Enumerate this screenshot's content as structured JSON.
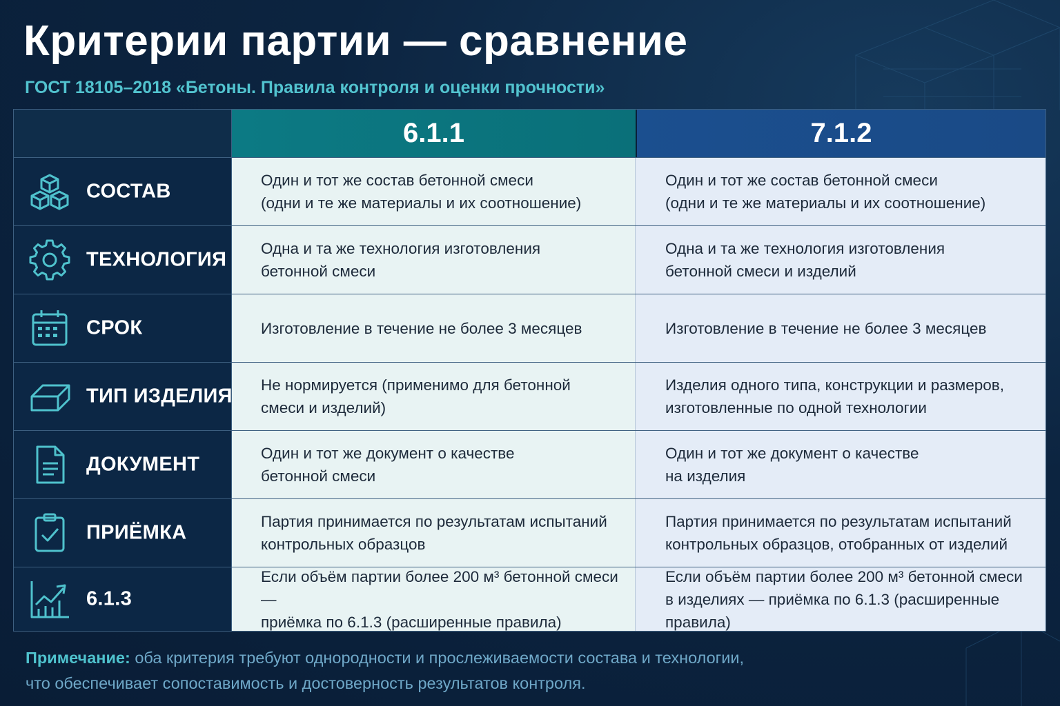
{
  "header": {
    "title": "Критерии партии — сравнение",
    "subtitle": "ГОСТ 18105–2018 «Бетоны. Правила контроля и оценки прочности»"
  },
  "table": {
    "columns": [
      "6.1.1",
      "7.1.2"
    ],
    "rows": [
      {
        "icon": "cubes-icon",
        "label": "СОСТАВ",
        "a": "Один и тот же состав бетонной смеси\n(одни и те же материалы и их соотношение)",
        "b": "Один и тот же состав бетонной смеси\n(одни и те же материалы и их соотношение)"
      },
      {
        "icon": "gear-icon",
        "label": "ТЕХНОЛОГИЯ",
        "a": "Одна и та же технология изготовления\nбетонной смеси",
        "b": "Одна и та же технология изготовления\nбетонной смеси и изделий"
      },
      {
        "icon": "calendar-icon",
        "label": "СРОК",
        "a": "Изготовление в течение не более 3 месяцев",
        "b": "Изготовление в течение не более 3 месяцев"
      },
      {
        "icon": "block-icon",
        "label": "ТИП ИЗДЕЛИЯ",
        "a": "Не нормируется (применимо для бетонной\nсмеси и изделий)",
        "b": "Изделия одного типа, конструкции и размеров,\nизготовленные по одной технологии"
      },
      {
        "icon": "document-icon",
        "label": "ДОКУМЕНТ",
        "a": "Один и тот же документ о качестве\nбетонной смеси",
        "b": "Один и тот же документ о качестве\nна изделия"
      },
      {
        "icon": "clipboard-check-icon",
        "label": "ПРИЁМКА",
        "a": "Партия принимается по результатам испытаний\nконтрольных образцов",
        "b": "Партия принимается по результатам испытаний\nконтрольных образцов, отобранных от изделий"
      },
      {
        "icon": "chart-growth-icon",
        "label": "6.1.3",
        "a": "Если объём партии более 200 м³ бетонной смеси —\nприёмка по 6.1.3 (расширенные правила)",
        "b": "Если объём партии более 200 м³ бетонной смеси\nв изделиях — приёмка по 6.1.3 (расширенные правила)"
      }
    ]
  },
  "note": {
    "label": "Примечание:",
    "text": " оба критерия требуют однородности и прослеживаемости состава и технологии,\nчто обеспечивает сопоставимость и достоверность результатов контроля."
  },
  "colors": {
    "background": "#0c2440",
    "accent_teal": "#0c7a84",
    "accent_blue": "#1b4f8f",
    "icon": "#4fc2cd"
  }
}
